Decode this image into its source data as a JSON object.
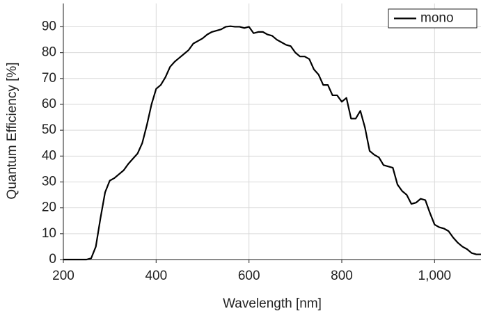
{
  "chart_data": {
    "type": "line",
    "x_label": "Wavelength [nm]",
    "y_label": "Quantum Efficiency [%]",
    "xlim": [
      200,
      1100
    ],
    "ylim": [
      0,
      99
    ],
    "xticks": [
      200,
      400,
      600,
      800,
      {
        "value": 1000,
        "label": "1,000"
      }
    ],
    "yticks": [
      0,
      10,
      20,
      30,
      40,
      50,
      60,
      70,
      80,
      90
    ],
    "grid": true,
    "legend": "top-right",
    "x": [
      200,
      210,
      220,
      230,
      240,
      250,
      260,
      270,
      280,
      290,
      300,
      310,
      320,
      330,
      340,
      350,
      360,
      370,
      380,
      390,
      400,
      410,
      420,
      430,
      440,
      450,
      460,
      470,
      480,
      490,
      500,
      510,
      520,
      530,
      540,
      550,
      560,
      570,
      580,
      590,
      600,
      610,
      620,
      630,
      640,
      650,
      660,
      670,
      680,
      690,
      700,
      710,
      720,
      730,
      740,
      750,
      760,
      770,
      780,
      790,
      800,
      810,
      820,
      830,
      840,
      850,
      860,
      870,
      880,
      890,
      900,
      910,
      920,
      930,
      940,
      950,
      960,
      970,
      980,
      990,
      1000,
      1010,
      1020,
      1030,
      1040,
      1050,
      1060,
      1070,
      1080,
      1090,
      1100
    ],
    "series": [
      {
        "name": "mono",
        "color": "#000000",
        "values": [
          0,
          0,
          0,
          0,
          0,
          0,
          0.5,
          5,
          16,
          26,
          30.5,
          31.5,
          33,
          34.5,
          37,
          39,
          41,
          45,
          52,
          60,
          66,
          67.5,
          70.5,
          74.5,
          76.5,
          78,
          79.5,
          81,
          83.5,
          84.5,
          85.5,
          87,
          88,
          88.5,
          89,
          90,
          90.2,
          90,
          90,
          89.5,
          90,
          87.5,
          88,
          88,
          87,
          86.5,
          85,
          84,
          83,
          82.5,
          80,
          78.5,
          78.5,
          77.5,
          73.5,
          71.5,
          67.5,
          67.5,
          63.5,
          63.5,
          61,
          62.5,
          54.5,
          54.5,
          57.5,
          51,
          42,
          40.5,
          39.5,
          36.5,
          36,
          35.5,
          29,
          26.5,
          25,
          21.5,
          22,
          23.5,
          23,
          18,
          13.5,
          12.5,
          12,
          11,
          8.5,
          6.5,
          5,
          4,
          2.5,
          2,
          2
        ]
      }
    ]
  }
}
